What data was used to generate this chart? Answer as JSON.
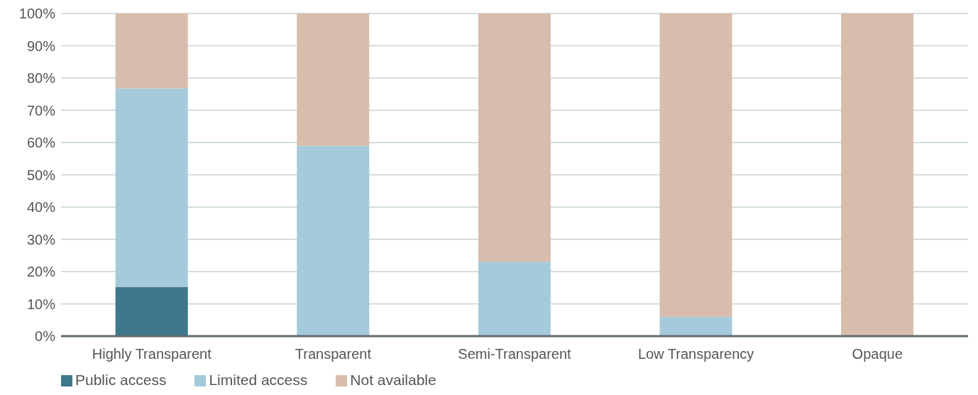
{
  "chart_data": {
    "type": "bar",
    "stacked": true,
    "categories": [
      "Highly Transparent",
      "Transparent",
      "Semi-Transparent",
      "Low Transparency",
      "Opaque"
    ],
    "series": [
      {
        "name": "Public access",
        "color": "#3d788c",
        "values": [
          15.3,
          0,
          0,
          0,
          0
        ]
      },
      {
        "name": "Limited access",
        "color": "#a5cadb",
        "values": [
          61.5,
          59,
          23,
          6,
          0
        ]
      },
      {
        "name": "Not available",
        "color": "#d8bdac",
        "values": [
          23.2,
          41,
          77,
          94,
          100
        ]
      }
    ],
    "ylim": [
      0,
      100
    ],
    "yticks": [
      {
        "value": 0,
        "label": "0%"
      },
      {
        "value": 10,
        "label": "10%"
      },
      {
        "value": 20,
        "label": "20%"
      },
      {
        "value": 30,
        "label": "30%"
      },
      {
        "value": 40,
        "label": "40%"
      },
      {
        "value": 50,
        "label": "50%"
      },
      {
        "value": 60,
        "label": "60%"
      },
      {
        "value": 70,
        "label": "70%"
      },
      {
        "value": 80,
        "label": "80%"
      },
      {
        "value": 90,
        "label": "90%"
      },
      {
        "value": 100,
        "label": "100%"
      }
    ],
    "grid": "y",
    "legend": "bottom left"
  }
}
